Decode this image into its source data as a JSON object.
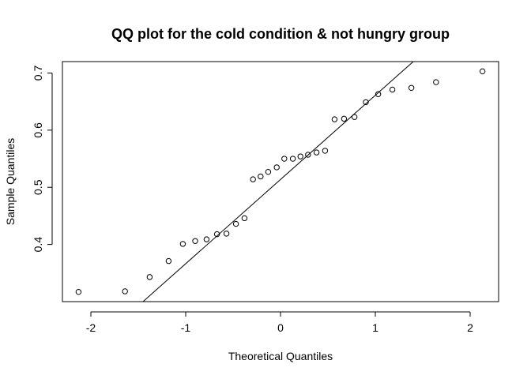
{
  "chart_data": {
    "type": "scatter",
    "title": "QQ plot for the cold condition & not hungry group",
    "xlabel": "Theoretical Quantiles",
    "ylabel": "Sample Quantiles",
    "xlim": [
      -2.3,
      2.3
    ],
    "ylim": [
      0.3,
      0.72
    ],
    "xticks": [
      -2,
      -1,
      0,
      1,
      2
    ],
    "xtick_labels": [
      "-2",
      "-1",
      "0",
      "1",
      "2"
    ],
    "yticks": [
      0.4,
      0.5,
      0.6,
      0.7
    ],
    "ytick_labels": [
      "0.4",
      "0.5",
      "0.6",
      "0.7"
    ],
    "grid": false,
    "marker": "open-circle",
    "reference_line": {
      "x": [
        -1.45,
        1.4
      ],
      "y": [
        0.3,
        0.72
      ]
    },
    "points": {
      "x": [
        -2.13,
        -1.64,
        -1.38,
        -1.18,
        -1.03,
        -0.9,
        -0.78,
        -0.67,
        -0.57,
        -0.47,
        -0.38,
        -0.29,
        -0.21,
        -0.13,
        -0.04,
        0.04,
        0.13,
        0.21,
        0.29,
        0.38,
        0.47,
        0.57,
        0.67,
        0.78,
        0.9,
        1.03,
        1.18,
        1.38,
        1.64,
        2.13
      ],
      "y": [
        0.317,
        0.318,
        0.343,
        0.371,
        0.401,
        0.406,
        0.409,
        0.418,
        0.419,
        0.436,
        0.446,
        0.514,
        0.519,
        0.527,
        0.535,
        0.55,
        0.55,
        0.554,
        0.557,
        0.561,
        0.564,
        0.619,
        0.62,
        0.623,
        0.649,
        0.663,
        0.671,
        0.674,
        0.684,
        0.703
      ]
    }
  }
}
